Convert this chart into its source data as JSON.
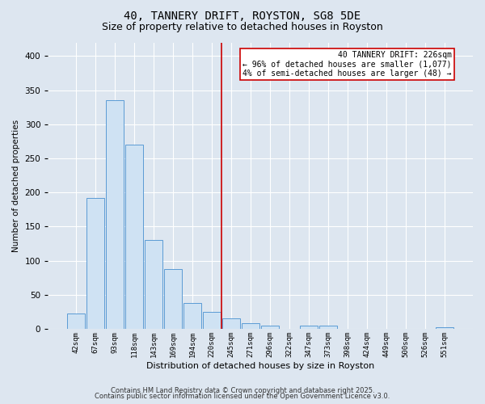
{
  "title1": "40, TANNERY DRIFT, ROYSTON, SG8 5DE",
  "title2": "Size of property relative to detached houses in Royston",
  "xlabel": "Distribution of detached houses by size in Royston",
  "ylabel": "Number of detached properties",
  "bar_labels": [
    "42sqm",
    "67sqm",
    "93sqm",
    "118sqm",
    "143sqm",
    "169sqm",
    "194sqm",
    "220sqm",
    "245sqm",
    "271sqm",
    "296sqm",
    "322sqm",
    "347sqm",
    "373sqm",
    "398sqm",
    "424sqm",
    "449sqm",
    "500sqm",
    "526sqm",
    "551sqm"
  ],
  "bar_values": [
    22,
    192,
    335,
    270,
    130,
    88,
    38,
    25,
    15,
    8,
    5,
    0,
    5,
    5,
    0,
    0,
    0,
    0,
    0,
    2
  ],
  "bar_color": "#cfe2f3",
  "bar_edge_color": "#5b9bd5",
  "vline_x": 7.5,
  "vline_color": "#cc0000",
  "annotation_text": "40 TANNERY DRIFT: 226sqm\n← 96% of detached houses are smaller (1,077)\n4% of semi-detached houses are larger (48) →",
  "annotation_box_color": "#cc0000",
  "annotation_box_face": "#ffffff",
  "footnote1": "Contains HM Land Registry data © Crown copyright and database right 2025.",
  "footnote2": "Contains public sector information licensed under the Open Government Licence v3.0.",
  "bg_color": "#dde6f0",
  "plot_bg_color": "#dde6f0",
  "ylim": [
    0,
    420
  ],
  "grid_color": "#ffffff",
  "title_fontsize": 10,
  "subtitle_fontsize": 9
}
